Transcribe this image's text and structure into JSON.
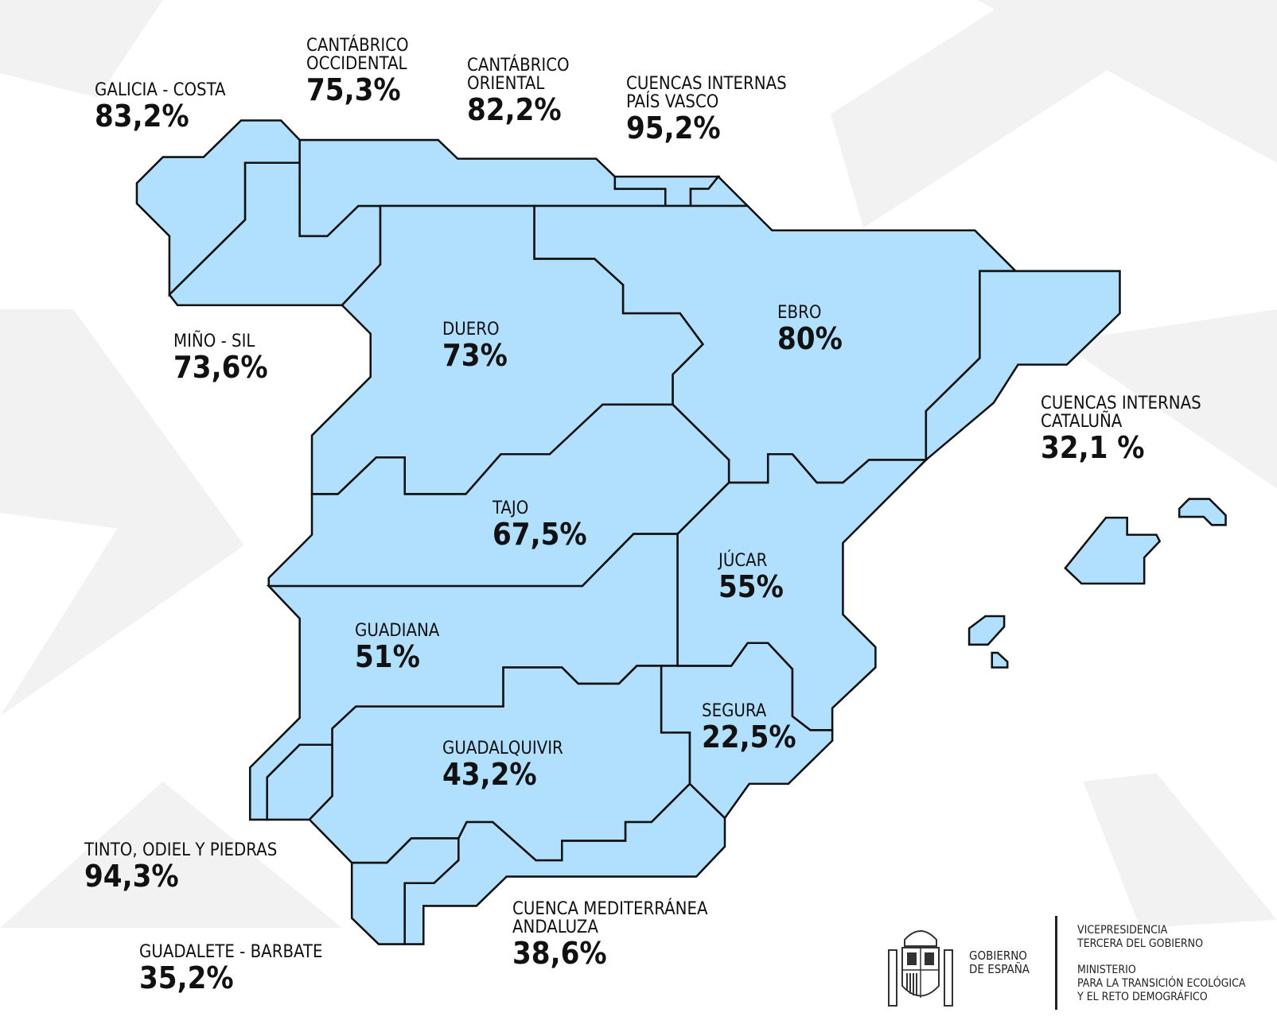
{
  "colors": {
    "basin_fill": "#b0e0fd",
    "border": "#111111",
    "background": "#ffffff"
  },
  "basins": [
    {
      "name": "GALICIA - COSTA",
      "value": "83,2%"
    },
    {
      "name": "CANTÁBRICO\nOCCIDENTAL",
      "value": "75,3%"
    },
    {
      "name": "CANTÁBRICO\nORIENTAL",
      "value": "82,2%"
    },
    {
      "name": "CUENCAS INTERNAS\nPAÍS VASCO",
      "value": "95,2%"
    },
    {
      "name": "MIÑO - SIL",
      "value": "73,6%"
    },
    {
      "name": "DUERO",
      "value": "73%"
    },
    {
      "name": "EBRO",
      "value": "80%"
    },
    {
      "name": "CUENCAS INTERNAS\nCATALUÑA",
      "value": "32,1 %"
    },
    {
      "name": "TAJO",
      "value": "67,5%"
    },
    {
      "name": "JÚCAR",
      "value": "55%"
    },
    {
      "name": "GUADIANA",
      "value": "51%"
    },
    {
      "name": "SEGURA",
      "value": "22,5%"
    },
    {
      "name": "GUADALQUIVIR",
      "value": "43,2%"
    },
    {
      "name": "TINTO, ODIEL Y PIEDRAS",
      "value": "94,3%"
    },
    {
      "name": "GUADALETE - BARBATE",
      "value": "35,2%"
    },
    {
      "name": "CUENCA MEDITERRÁNEA\nANDALUZA",
      "value": "38,6%"
    }
  ],
  "footer": {
    "government": "GOBIERNO\nDE ESPAÑA",
    "ministry": "VICEPRESIDENCIA\nTERCERA DEL GOBIERNO\n\nMINISTERIO\nPARA LA TRANSICIÓN ECOLÓGICA\nY EL RETO DEMOGRÁFICO"
  }
}
